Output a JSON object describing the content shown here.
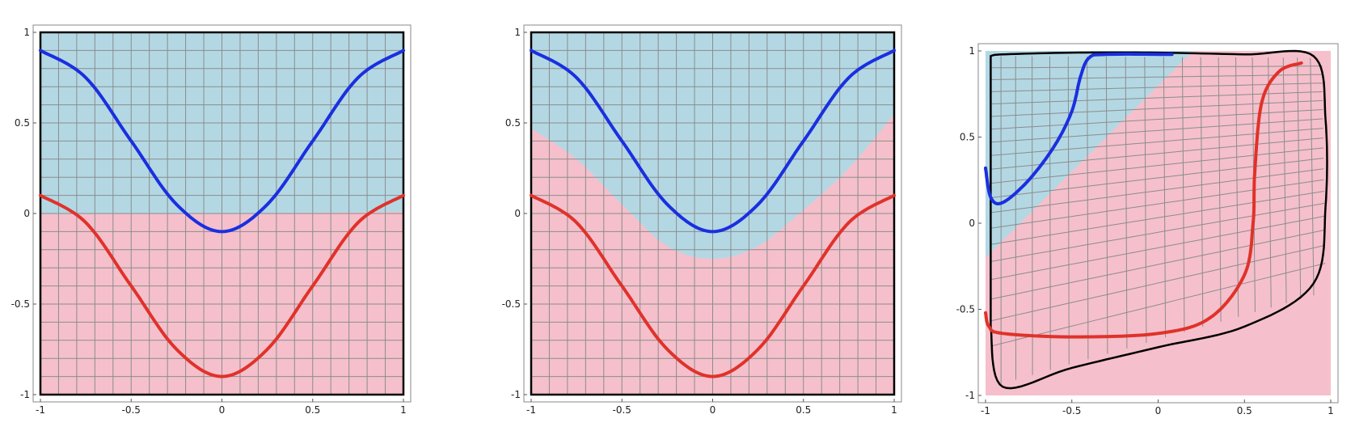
{
  "colors": {
    "upper_region": "#b3d8e4",
    "lower_region": "#f5c0cb",
    "grid": "#8c8c8c",
    "boundary": "#000000",
    "blue_curve": "#1a2fe0",
    "red_curve": "#e0322a"
  },
  "chart_data": [
    {
      "type": "line",
      "title": "",
      "xlim": [
        -1,
        1
      ],
      "ylim": [
        -1,
        1
      ],
      "xticks": [
        "-1",
        "-0.5",
        "0",
        "0.5",
        "1"
      ],
      "yticks": [
        "-1",
        "-0.5",
        "0",
        "0.5",
        "1"
      ],
      "grid": true,
      "regions": [
        {
          "name": "upper",
          "color": "#b3d8e4",
          "boundary": {
            "x": [
              -1,
              0,
              1
            ],
            "y": [
              0,
              0,
              0.01
            ]
          }
        },
        {
          "name": "lower",
          "color": "#f5c0cb"
        }
      ],
      "series": [
        {
          "color": "#1a2fe0",
          "x": [
            -1,
            -0.75,
            -0.5,
            -0.25,
            0,
            0.25,
            0.5,
            0.75,
            1
          ],
          "y": [
            0.9,
            0.75,
            0.4,
            0.05,
            -0.1,
            0.05,
            0.4,
            0.75,
            0.9
          ]
        },
        {
          "color": "#e0322a",
          "x": [
            -1,
            -0.75,
            -0.5,
            -0.25,
            0,
            0.25,
            0.5,
            0.75,
            1
          ],
          "y": [
            0.1,
            -0.05,
            -0.4,
            -0.75,
            -0.9,
            -0.75,
            -0.4,
            -0.05,
            0.1
          ]
        }
      ]
    },
    {
      "type": "line",
      "title": "",
      "xlim": [
        -1,
        1
      ],
      "ylim": [
        -1,
        1
      ],
      "xticks": [
        "-1",
        "-0.5",
        "0",
        "0.5",
        "1"
      ],
      "yticks": [
        "-1",
        "-0.5",
        "0",
        "0.5",
        "1"
      ],
      "grid": true,
      "regions": [
        {
          "name": "upper",
          "color": "#b3d8e4",
          "boundary": {
            "x": [
              -1,
              -0.75,
              -0.5,
              -0.25,
              0,
              0.25,
              0.5,
              0.75,
              1
            ],
            "y": [
              0.47,
              0.3,
              0.05,
              -0.18,
              -0.25,
              -0.18,
              0.02,
              0.25,
              0.55
            ]
          }
        },
        {
          "name": "lower",
          "color": "#f5c0cb"
        }
      ],
      "series": [
        {
          "color": "#1a2fe0",
          "x": [
            -1,
            -0.75,
            -0.5,
            -0.25,
            0,
            0.25,
            0.5,
            0.75,
            1
          ],
          "y": [
            0.9,
            0.75,
            0.4,
            0.05,
            -0.1,
            0.05,
            0.4,
            0.75,
            0.9
          ]
        },
        {
          "color": "#e0322a",
          "x": [
            -1,
            -0.75,
            -0.5,
            -0.25,
            0,
            0.25,
            0.5,
            0.75,
            1
          ],
          "y": [
            0.1,
            -0.05,
            -0.4,
            -0.75,
            -0.9,
            -0.75,
            -0.4,
            -0.05,
            0.1
          ]
        }
      ]
    },
    {
      "type": "line",
      "title": "",
      "xlim": [
        -1,
        1
      ],
      "ylim": [
        -1,
        1
      ],
      "xticks": [
        "-1",
        "-0.5",
        "0",
        "0.5",
        "1"
      ],
      "yticks": [
        "-1",
        "-0.5",
        "0",
        "0.5",
        "1"
      ],
      "grid": "curvilinear",
      "regions": [
        {
          "name": "upper",
          "color": "#b3d8e4",
          "polygon": {
            "x": [
              -1,
              -1,
              0.2
            ],
            "y": [
              1,
              -0.2,
              1
            ]
          }
        },
        {
          "name": "lower",
          "color": "#f5c0cb"
        }
      ],
      "boundary": {
        "x": [
          -0.97,
          -0.9,
          -0.5,
          0,
          0.5,
          0.9,
          0.97,
          0.97,
          0.9,
          0.5,
          0,
          -0.5,
          -0.9,
          -0.97
        ],
        "y": [
          0.97,
          0.98,
          0.99,
          0.99,
          0.98,
          0.97,
          0.6,
          0.1,
          -0.35,
          -0.6,
          -0.72,
          -0.84,
          -0.95,
          -0.6
        ]
      },
      "series": [
        {
          "color": "#1a2fe0",
          "x": [
            -1,
            -0.97,
            -0.9,
            -0.75,
            -0.6,
            -0.5,
            -0.45,
            -0.4,
            -0.3,
            0.08
          ],
          "y": [
            0.32,
            0.15,
            0.12,
            0.25,
            0.45,
            0.65,
            0.85,
            0.96,
            0.98,
            0.98
          ]
        },
        {
          "color": "#e0322a",
          "x": [
            -1,
            -0.98,
            -0.9,
            -0.5,
            0,
            0.3,
            0.5,
            0.55,
            0.56,
            0.6,
            0.7,
            0.83
          ],
          "y": [
            -0.52,
            -0.6,
            -0.64,
            -0.66,
            -0.64,
            -0.55,
            -0.3,
            0,
            0.3,
            0.7,
            0.88,
            0.93
          ]
        }
      ]
    }
  ]
}
